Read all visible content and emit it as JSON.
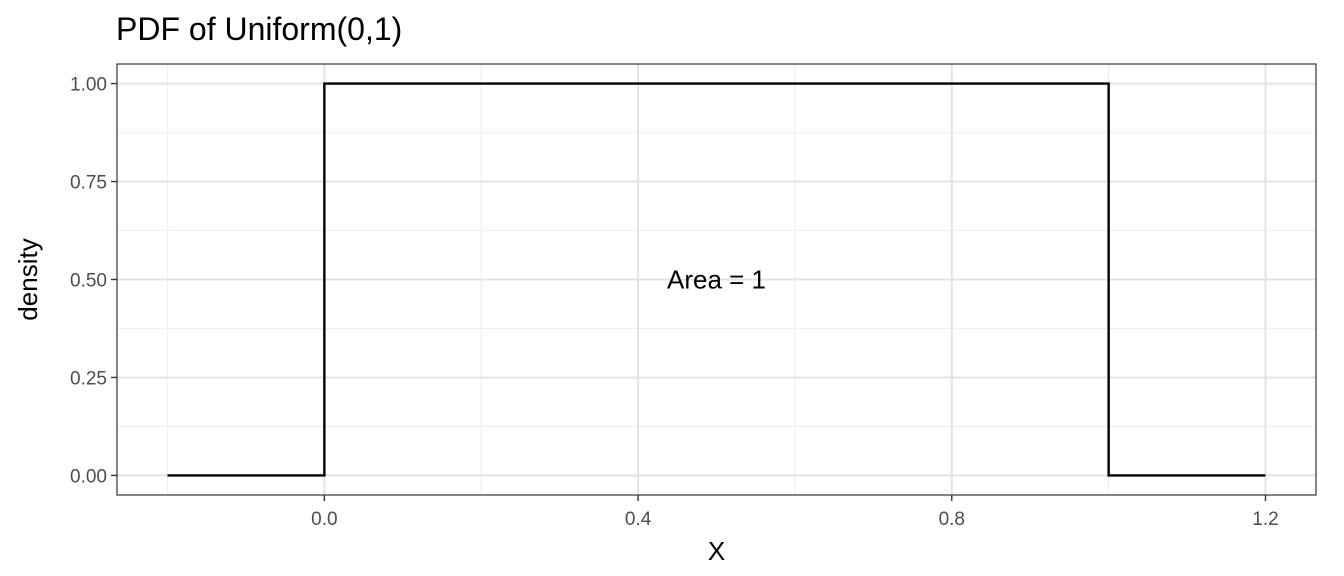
{
  "chart_data": {
    "type": "line",
    "title": "PDF of Uniform(0,1)",
    "xlabel": "X",
    "ylabel": "density",
    "xlim": [
      -0.2,
      1.2
    ],
    "ylim": [
      0,
      1
    ],
    "x_ticks": [
      {
        "value": 0.0,
        "label": "0.0"
      },
      {
        "value": 0.4,
        "label": "0.4"
      },
      {
        "value": 0.8,
        "label": "0.8"
      },
      {
        "value": 1.2,
        "label": "1.2"
      }
    ],
    "x_minor_grid": [
      -0.2,
      0.2,
      0.6,
      1.0
    ],
    "y_ticks": [
      {
        "value": 0.0,
        "label": "0.00"
      },
      {
        "value": 0.25,
        "label": "0.25"
      },
      {
        "value": 0.5,
        "label": "0.50"
      },
      {
        "value": 0.75,
        "label": "0.75"
      },
      {
        "value": 1.0,
        "label": "1.00"
      }
    ],
    "y_minor_grid": [
      0.125,
      0.375,
      0.625,
      0.875
    ],
    "grid": true,
    "series": [
      {
        "points": [
          {
            "x": -0.2,
            "y": 0
          },
          {
            "x": 0.0,
            "y": 0
          },
          {
            "x": 0.0,
            "y": 1
          },
          {
            "x": 1.0,
            "y": 1
          },
          {
            "x": 1.0,
            "y": 0
          },
          {
            "x": 1.2,
            "y": 0
          }
        ],
        "color": "#000000"
      }
    ],
    "annotations": [
      {
        "text": "Area = 1",
        "x": 0.5,
        "y": 0.5
      }
    ]
  }
}
